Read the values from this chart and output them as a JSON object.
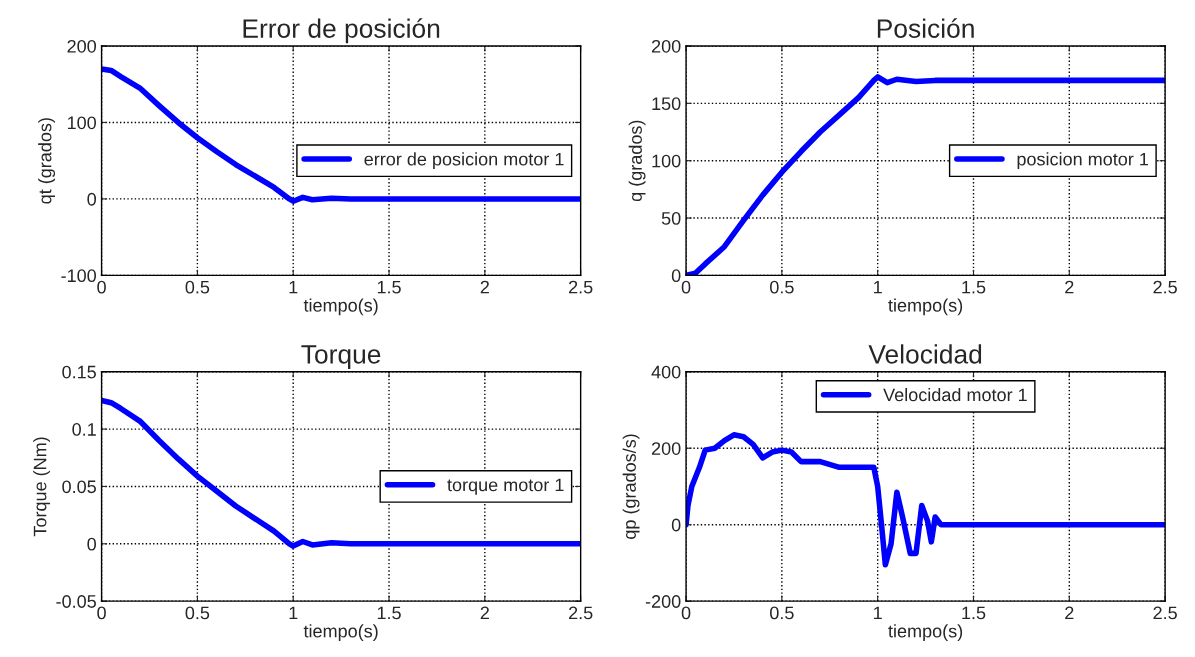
{
  "chart_data": [
    {
      "type": "line",
      "title": "Error de posición",
      "xlabel": "tiempo(s)",
      "ylabel": "qt (grados)",
      "xlim": [
        0,
        2.5
      ],
      "xticks": [
        0,
        0.5,
        1,
        1.5,
        2,
        2.5
      ],
      "ylim": [
        -100,
        200
      ],
      "yticks": [
        -100,
        0,
        100,
        200
      ],
      "grid": true,
      "legend": "right",
      "x": [
        0,
        0.05,
        0.1,
        0.2,
        0.3,
        0.4,
        0.5,
        0.6,
        0.7,
        0.8,
        0.9,
        0.98,
        1.0,
        1.05,
        1.1,
        1.2,
        1.3,
        2.5
      ],
      "series": [
        {
          "name": "error de posicion motor 1",
          "color": "#0000ff",
          "values": [
            170,
            168,
            160,
            145,
            122,
            100,
            80,
            62,
            45,
            30,
            15,
            0,
            -3,
            2,
            -1,
            1,
            0,
            0
          ]
        }
      ]
    },
    {
      "type": "line",
      "title": "Posición",
      "xlabel": "tiempo(s)",
      "ylabel": "q (grados)",
      "xlim": [
        0,
        2.5
      ],
      "xticks": [
        0,
        0.5,
        1,
        1.5,
        2,
        2.5
      ],
      "ylim": [
        0,
        200
      ],
      "yticks": [
        0,
        50,
        100,
        150,
        200
      ],
      "grid": true,
      "legend": "right",
      "x": [
        0,
        0.05,
        0.1,
        0.2,
        0.3,
        0.4,
        0.5,
        0.6,
        0.7,
        0.8,
        0.9,
        0.98,
        1.0,
        1.05,
        1.1,
        1.2,
        1.3,
        2.5
      ],
      "series": [
        {
          "name": "posicion motor 1",
          "color": "#0000ff",
          "values": [
            0,
            2,
            10,
            25,
            48,
            70,
            90,
            108,
            125,
            140,
            155,
            170,
            173,
            168,
            171,
            169,
            170,
            170
          ]
        }
      ]
    },
    {
      "type": "line",
      "title": "Torque",
      "xlabel": "tiempo(s)",
      "ylabel": "Torque (Nm)",
      "xlim": [
        0,
        2.5
      ],
      "xticks": [
        0,
        0.5,
        1,
        1.5,
        2,
        2.5
      ],
      "ylim": [
        -0.05,
        0.15
      ],
      "yticks": [
        {
          "value": -0.05,
          "label": "-0.05"
        },
        0,
        0.05,
        0.1,
        0.15
      ],
      "grid": true,
      "legend": "right",
      "x": [
        0,
        0.05,
        0.1,
        0.2,
        0.3,
        0.4,
        0.5,
        0.6,
        0.7,
        0.8,
        0.9,
        0.98,
        1.0,
        1.05,
        1.1,
        1.2,
        1.3,
        2.5
      ],
      "series": [
        {
          "name": "torque motor 1",
          "color": "#0000ff",
          "values": [
            0.125,
            0.123,
            0.118,
            0.107,
            0.09,
            0.074,
            0.059,
            0.046,
            0.033,
            0.022,
            0.011,
            0,
            -0.002,
            0.002,
            -0.001,
            0.001,
            0,
            0
          ]
        }
      ]
    },
    {
      "type": "line",
      "title": "Velocidad",
      "xlabel": "tiempo(s)",
      "ylabel": "qp (grados/s)",
      "xlim": [
        0,
        2.5
      ],
      "xticks": [
        0,
        0.5,
        1,
        1.5,
        2,
        2.5
      ],
      "ylim": [
        -200,
        400
      ],
      "yticks": [
        -200,
        0,
        200,
        400
      ],
      "grid": true,
      "legend": "top",
      "x": [
        0,
        0.01,
        0.03,
        0.07,
        0.1,
        0.15,
        0.2,
        0.25,
        0.3,
        0.35,
        0.4,
        0.45,
        0.5,
        0.55,
        0.6,
        0.7,
        0.8,
        0.9,
        0.98,
        1.0,
        1.02,
        1.04,
        1.07,
        1.1,
        1.13,
        1.17,
        1.2,
        1.23,
        1.26,
        1.28,
        1.3,
        1.33,
        2.5
      ],
      "series": [
        {
          "name": "Velocidad motor 1",
          "color": "#0000ff",
          "values": [
            0,
            50,
            100,
            150,
            195,
            200,
            220,
            235,
            230,
            210,
            175,
            190,
            195,
            190,
            165,
            165,
            150,
            150,
            150,
            100,
            0,
            -105,
            -50,
            85,
            20,
            -75,
            -75,
            50,
            10,
            -45,
            20,
            0,
            0
          ]
        }
      ]
    }
  ]
}
